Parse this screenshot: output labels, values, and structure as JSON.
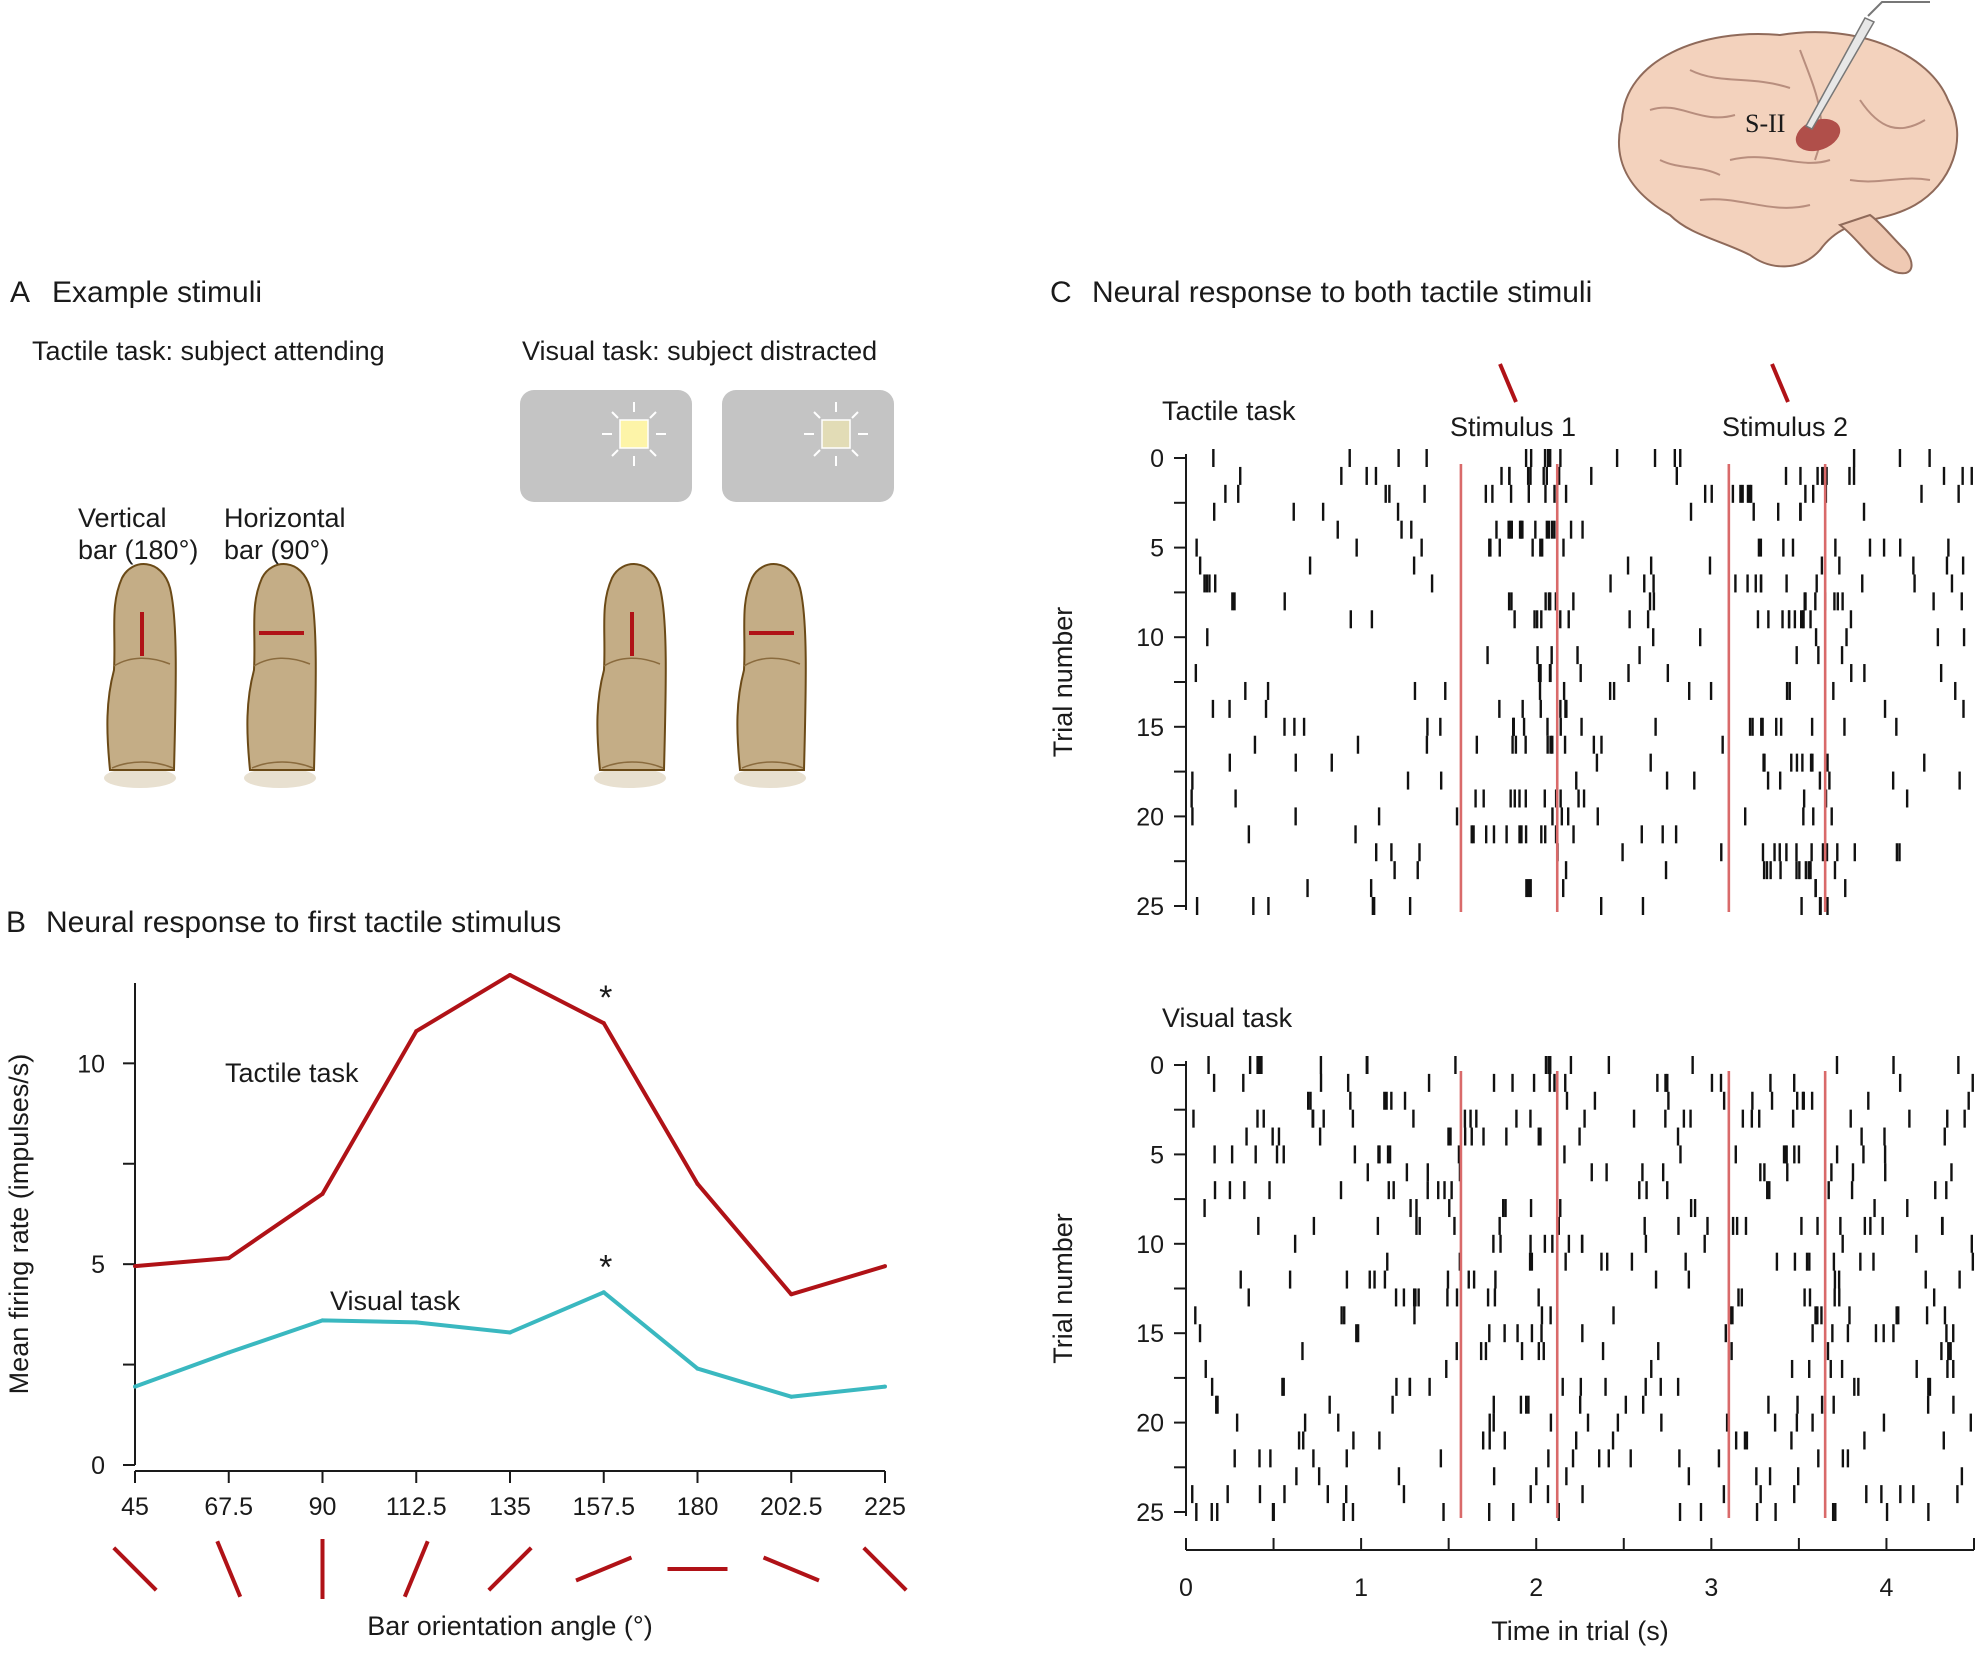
{
  "brain": {
    "label": "S-II"
  },
  "panelA": {
    "letter": "A",
    "title": "Example stimuli",
    "tactile_header": "Tactile task: subject attending",
    "visual_header": "Visual task: subject distracted",
    "vertical_label": [
      "Vertical",
      "bar (180°)"
    ],
    "horizontal_label": [
      "Horizontal",
      "bar (90°)"
    ]
  },
  "panelB": {
    "letter": "B",
    "title": "Neural response to first tactile stimulus"
  },
  "panelC": {
    "letter": "C",
    "title": "Neural response to both tactile stimuli",
    "stim1_label": "Stimulus 1",
    "stim2_label": "Stimulus 2"
  },
  "colors": {
    "tactile": "#b01217",
    "visual": "#3ab8c0",
    "stim_line": "#d96a6a",
    "finger": "#c4ad86",
    "panel_gray": "#c4c4c4"
  },
  "chart_data": [
    {
      "type": "line",
      "panel": "B",
      "xlabel": "Bar orientation angle (°)",
      "ylabel": "Mean firing rate  (impulses/s)",
      "x": [
        45,
        67.5,
        90,
        112.5,
        135,
        157.5,
        180,
        202.5,
        225
      ],
      "x_tick_labels": [
        "45",
        "67.5",
        "90",
        "112.5",
        "135",
        "157.5",
        "180",
        "202.5",
        "225"
      ],
      "ylim": [
        0,
        12
      ],
      "y_ticks": [
        0,
        5,
        10
      ],
      "series": [
        {
          "name": "Tactile task",
          "values": [
            4.95,
            5.15,
            6.75,
            10.8,
            12.2,
            11.0,
            7.0,
            4.25,
            4.95
          ],
          "marker_index": 5,
          "marker": "*"
        },
        {
          "name": "Visual task",
          "values": [
            1.95,
            2.8,
            3.6,
            3.55,
            3.3,
            4.3,
            2.4,
            1.7,
            1.95
          ],
          "marker_index": 5,
          "marker": "*"
        }
      ],
      "grid": false
    },
    {
      "type": "scatter",
      "panel": "C-top",
      "title": "Tactile task",
      "xlabel": "",
      "ylabel": "Trial number",
      "xlim": [
        0,
        4.5
      ],
      "ylim": [
        25,
        0
      ],
      "y_ticks": [
        0,
        5,
        10,
        15,
        20,
        25
      ],
      "stimulus_lines_s": [
        1.57,
        2.12,
        3.1,
        3.65
      ],
      "seed": 17,
      "spike_rates": {
        "baseline": 2.2,
        "stimulus": 14.0
      }
    },
    {
      "type": "scatter",
      "panel": "C-bottom",
      "title": "Visual task",
      "xlabel": "Time in trial (s)",
      "ylabel": "Trial number",
      "xlim": [
        0,
        4.5
      ],
      "x_ticks": [
        0,
        1,
        2,
        3,
        4
      ],
      "ylim": [
        25,
        0
      ],
      "y_ticks": [
        0,
        5,
        10,
        15,
        20,
        25
      ],
      "stimulus_lines_s": [
        1.57,
        2.12,
        3.1,
        3.65
      ],
      "seed": 91,
      "spike_rates": {
        "baseline": 3.2,
        "stimulus": 6.0
      }
    }
  ]
}
